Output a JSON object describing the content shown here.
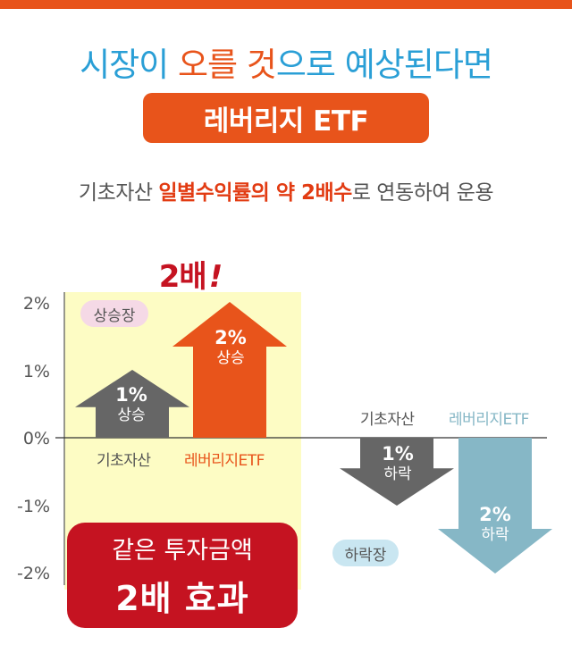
{
  "colors": {
    "accent_orange": "#e8541b",
    "headline_blue": "#2a9fd6",
    "bull_zone": "#fdfcc4",
    "base_arrow": "#666666",
    "leverage_up_arrow": "#e8541b",
    "leverage_down_arrow": "#86b7c6",
    "effect_box": "#c51321",
    "bull_pill": "#f5d9e6",
    "bear_pill": "#c9e6f1"
  },
  "headline": {
    "part1": "시장이 ",
    "part2": "오를 것",
    "part3": "으로 예상된다면"
  },
  "badge": {
    "label": "레버리지 ETF"
  },
  "subline": {
    "prefix": "기초자산 ",
    "highlight": "일별수익률의 약 2배수",
    "suffix": "로 연동하여 운용"
  },
  "callout": {
    "text": "2배",
    "exclaim": "!"
  },
  "y_axis": {
    "ticks": [
      "2%",
      "1%",
      "0%",
      "-1%",
      "-2%"
    ]
  },
  "bull_market": {
    "pill": "상승장",
    "base": {
      "pct": "1%",
      "dir": "상승",
      "label": "기초자산",
      "value": 1
    },
    "leverage": {
      "pct": "2%",
      "dir": "상승",
      "label": "레버리지ETF",
      "value": 2
    }
  },
  "bear_market": {
    "pill": "하락장",
    "base": {
      "pct": "1%",
      "dir": "하락",
      "label": "기초자산",
      "value": -1
    },
    "leverage": {
      "pct": "2%",
      "dir": "하락",
      "label": "레버리지ETF",
      "value": -2
    }
  },
  "effect_box": {
    "line1": "같은 투자금액",
    "line2": "2배 효과"
  }
}
